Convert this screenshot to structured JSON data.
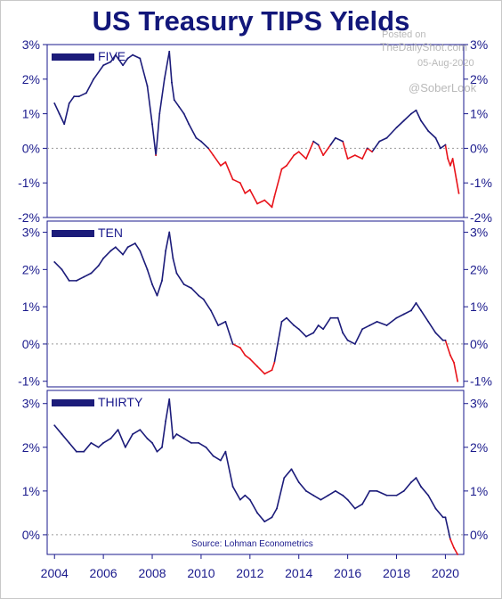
{
  "title": "US Treasury TIPS Yields",
  "watermark": {
    "posted_on": "Posted on",
    "site": "TheDailyShot.com",
    "date": "05-Aug-2020",
    "handle": "@SoberLook"
  },
  "source": "Source: Lohman Econometrics",
  "colors": {
    "positive": "#1c1c7a",
    "negative": "#e8141b",
    "axis": "#1a1a8c",
    "title": "#12177a",
    "zero_line": "#999999"
  },
  "x_axis": {
    "range": [
      2003.7,
      2020.75
    ],
    "ticks": [
      2004,
      2006,
      2008,
      2010,
      2012,
      2014,
      2016,
      2018,
      2020
    ],
    "tick_labels": [
      "2004",
      "2006",
      "2008",
      "2010",
      "2012",
      "2014",
      "2016",
      "2018",
      "2020"
    ]
  },
  "chart_data": [
    {
      "type": "line",
      "label": "FIVE",
      "y_unit": "%",
      "ylim": [
        -2,
        3
      ],
      "y_ticks": [
        -2,
        -1,
        0,
        1,
        2,
        3
      ],
      "y_tick_labels": [
        "-2%",
        "-1%",
        "0%",
        "1%",
        "2%",
        "3%"
      ],
      "x": [
        2004.0,
        2004.2,
        2004.4,
        2004.6,
        2004.8,
        2005.0,
        2005.3,
        2005.6,
        2006.0,
        2006.3,
        2006.5,
        2006.8,
        2007.0,
        2007.2,
        2007.5,
        2007.8,
        2008.0,
        2008.15,
        2008.3,
        2008.5,
        2008.7,
        2008.8,
        2008.9,
        2009.1,
        2009.3,
        2009.5,
        2009.8,
        2010.0,
        2010.3,
        2010.5,
        2010.8,
        2011.0,
        2011.3,
        2011.6,
        2011.8,
        2012.0,
        2012.3,
        2012.6,
        2012.9,
        2013.0,
        2013.3,
        2013.5,
        2013.8,
        2014.0,
        2014.3,
        2014.6,
        2014.8,
        2015.0,
        2015.3,
        2015.5,
        2015.8,
        2016.0,
        2016.3,
        2016.6,
        2016.8,
        2017.0,
        2017.3,
        2017.6,
        2018.0,
        2018.3,
        2018.6,
        2018.8,
        2019.0,
        2019.3,
        2019.6,
        2019.8,
        2020.0,
        2020.1,
        2020.2,
        2020.3,
        2020.45,
        2020.55
      ],
      "values": [
        1.3,
        1.0,
        0.7,
        1.3,
        1.5,
        1.5,
        1.6,
        2.0,
        2.4,
        2.5,
        2.7,
        2.4,
        2.6,
        2.7,
        2.6,
        1.8,
        0.7,
        -0.2,
        1.0,
        2.0,
        2.8,
        1.9,
        1.4,
        1.2,
        1.0,
        0.7,
        0.3,
        0.2,
        0.0,
        -0.2,
        -0.5,
        -0.4,
        -0.9,
        -1.0,
        -1.3,
        -1.2,
        -1.6,
        -1.5,
        -1.7,
        -1.4,
        -0.6,
        -0.5,
        -0.2,
        -0.1,
        -0.3,
        0.2,
        0.1,
        -0.2,
        0.1,
        0.3,
        0.2,
        -0.3,
        -0.2,
        -0.3,
        0.0,
        -0.1,
        0.2,
        0.3,
        0.6,
        0.8,
        1.0,
        1.1,
        0.8,
        0.5,
        0.3,
        0.0,
        0.1,
        -0.3,
        -0.5,
        -0.3,
        -0.9,
        -1.3
      ]
    },
    {
      "type": "line",
      "label": "TEN",
      "y_unit": "%",
      "ylim": [
        -1.15,
        3.3
      ],
      "y_ticks": [
        -1,
        0,
        1,
        2,
        3
      ],
      "y_tick_labels": [
        "-1%",
        "0%",
        "1%",
        "2%",
        "3%"
      ],
      "x": [
        2004.0,
        2004.3,
        2004.6,
        2004.9,
        2005.2,
        2005.5,
        2005.8,
        2006.0,
        2006.3,
        2006.5,
        2006.8,
        2007.0,
        2007.3,
        2007.5,
        2007.8,
        2008.0,
        2008.2,
        2008.4,
        2008.55,
        2008.7,
        2008.85,
        2009.0,
        2009.3,
        2009.6,
        2009.9,
        2010.1,
        2010.4,
        2010.7,
        2011.0,
        2011.3,
        2011.6,
        2011.8,
        2012.0,
        2012.3,
        2012.6,
        2012.9,
        2013.0,
        2013.3,
        2013.5,
        2013.8,
        2014.0,
        2014.3,
        2014.6,
        2014.8,
        2015.0,
        2015.3,
        2015.6,
        2015.8,
        2016.0,
        2016.3,
        2016.6,
        2016.9,
        2017.2,
        2017.6,
        2018.0,
        2018.3,
        2018.6,
        2018.8,
        2019.0,
        2019.3,
        2019.6,
        2019.9,
        2020.0,
        2020.2,
        2020.35,
        2020.5
      ],
      "values": [
        2.2,
        2.0,
        1.7,
        1.7,
        1.8,
        1.9,
        2.1,
        2.3,
        2.5,
        2.6,
        2.4,
        2.6,
        2.7,
        2.5,
        2.0,
        1.6,
        1.3,
        1.7,
        2.5,
        3.0,
        2.3,
        1.9,
        1.6,
        1.5,
        1.3,
        1.2,
        0.9,
        0.5,
        0.6,
        0.0,
        -0.1,
        -0.3,
        -0.4,
        -0.6,
        -0.8,
        -0.7,
        -0.5,
        0.6,
        0.7,
        0.5,
        0.4,
        0.2,
        0.3,
        0.5,
        0.4,
        0.7,
        0.7,
        0.3,
        0.1,
        0.0,
        0.4,
        0.5,
        0.6,
        0.5,
        0.7,
        0.8,
        0.9,
        1.1,
        0.9,
        0.6,
        0.3,
        0.1,
        0.1,
        -0.3,
        -0.5,
        -1.0
      ]
    },
    {
      "type": "line",
      "label": "THIRTY",
      "y_unit": "%",
      "ylim": [
        -0.45,
        3.3
      ],
      "y_ticks": [
        0,
        1,
        2,
        3
      ],
      "y_tick_labels": [
        "0%",
        "1%",
        "2%",
        "3%"
      ],
      "x": [
        2004.0,
        2004.3,
        2004.6,
        2004.9,
        2005.2,
        2005.5,
        2005.8,
        2006.0,
        2006.3,
        2006.6,
        2006.9,
        2007.2,
        2007.5,
        2007.8,
        2008.0,
        2008.2,
        2008.4,
        2008.55,
        2008.7,
        2008.85,
        2009.0,
        2009.3,
        2009.6,
        2009.9,
        2010.2,
        2010.5,
        2010.8,
        2011.0,
        2011.3,
        2011.6,
        2011.8,
        2012.0,
        2012.3,
        2012.6,
        2012.9,
        2013.1,
        2013.4,
        2013.7,
        2014.0,
        2014.3,
        2014.6,
        2014.9,
        2015.2,
        2015.5,
        2015.8,
        2016.0,
        2016.3,
        2016.6,
        2016.9,
        2017.2,
        2017.6,
        2018.0,
        2018.3,
        2018.6,
        2018.8,
        2019.0,
        2019.3,
        2019.6,
        2019.9,
        2020.0,
        2020.2,
        2020.35,
        2020.5
      ],
      "values": [
        2.5,
        2.3,
        2.1,
        1.9,
        1.9,
        2.1,
        2.0,
        2.1,
        2.2,
        2.4,
        2.0,
        2.3,
        2.4,
        2.2,
        2.1,
        1.9,
        2.0,
        2.6,
        3.1,
        2.2,
        2.3,
        2.2,
        2.1,
        2.1,
        2.0,
        1.8,
        1.7,
        1.9,
        1.1,
        0.8,
        0.9,
        0.8,
        0.5,
        0.3,
        0.4,
        0.6,
        1.3,
        1.5,
        1.2,
        1.0,
        0.9,
        0.8,
        0.9,
        1.0,
        0.9,
        0.8,
        0.6,
        0.7,
        1.0,
        1.0,
        0.9,
        0.9,
        1.0,
        1.2,
        1.3,
        1.1,
        0.9,
        0.6,
        0.4,
        0.4,
        -0.1,
        -0.3,
        -0.45
      ]
    }
  ]
}
